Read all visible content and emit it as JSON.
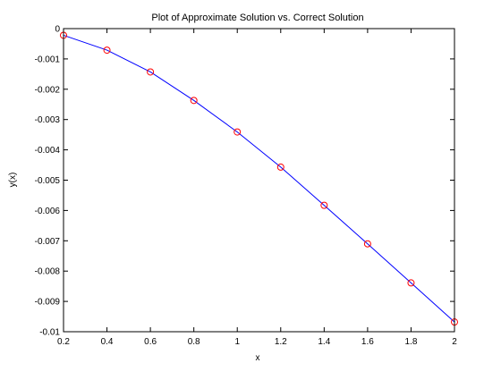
{
  "chart_data": {
    "type": "line",
    "title": "Plot of Approximate Solution vs. Correct Solution",
    "xlabel": "x",
    "ylabel": "y(x)",
    "xlim": [
      0.2,
      2
    ],
    "ylim": [
      -0.01,
      0
    ],
    "x_ticks": [
      "0.2",
      "0.4",
      "0.6",
      "0.8",
      "1",
      "1.2",
      "1.4",
      "1.6",
      "1.8",
      "2"
    ],
    "x_tick_values": [
      0.2,
      0.4,
      0.6,
      0.8,
      1.0,
      1.2,
      1.4,
      1.6,
      1.8,
      2.0
    ],
    "y_ticks": [
      "0",
      "-0.001",
      "-0.002",
      "-0.003",
      "-0.004",
      "-0.005",
      "-0.006",
      "-0.007",
      "-0.008",
      "-0.009",
      "-0.01"
    ],
    "y_tick_values": [
      0,
      -0.001,
      -0.002,
      -0.003,
      -0.004,
      -0.005,
      -0.006,
      -0.007,
      -0.008,
      -0.009,
      -0.01
    ],
    "grid": false,
    "legend": "none",
    "series": [
      {
        "style": "line",
        "color": "#0000ff",
        "x": [
          0.2,
          0.4,
          0.6,
          0.8,
          1.0,
          1.2,
          1.4,
          1.6,
          1.8,
          2.0
        ],
        "values": [
          -0.00022,
          -0.00071,
          -0.00143,
          -0.00237,
          -0.00341,
          -0.00457,
          -0.00583,
          -0.0071,
          -0.00839,
          -0.00968
        ]
      },
      {
        "style": "markers",
        "marker": "circle",
        "color": "#ff0000",
        "x": [
          0.2,
          0.4,
          0.6,
          0.8,
          1.0,
          1.2,
          1.4,
          1.6,
          1.8,
          2.0
        ],
        "values": [
          -0.00022,
          -0.00071,
          -0.00143,
          -0.00237,
          -0.00341,
          -0.00457,
          -0.00583,
          -0.0071,
          -0.00839,
          -0.00968
        ]
      }
    ]
  }
}
